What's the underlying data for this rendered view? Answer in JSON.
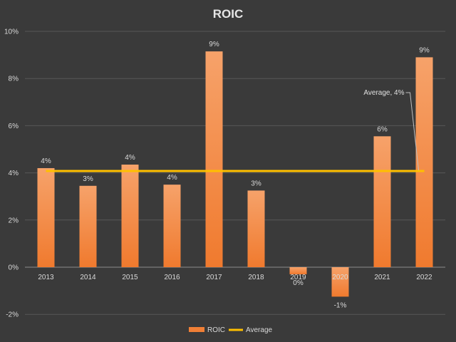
{
  "chart_data": {
    "type": "bar",
    "title": "ROIC",
    "categories": [
      "2013",
      "2014",
      "2015",
      "2016",
      "2017",
      "2018",
      "2019",
      "2020",
      "2021",
      "2022"
    ],
    "series": [
      {
        "name": "ROIC",
        "type": "bar",
        "color": "#f07f36",
        "values": [
          4.2,
          3.45,
          4.35,
          3.5,
          9.15,
          3.25,
          -0.3,
          -1.25,
          5.55,
          8.9
        ],
        "data_labels": [
          "4%",
          "3%",
          "4%",
          "4%",
          "9%",
          "3%",
          "0%",
          "-1%",
          "6%",
          "9%"
        ]
      },
      {
        "name": "Average",
        "type": "line",
        "color": "#ffc000",
        "values": [
          4.08,
          4.08,
          4.08,
          4.08,
          4.08,
          4.08,
          4.08,
          4.08,
          4.08,
          4.08
        ]
      }
    ],
    "ylim": [
      -2,
      10
    ],
    "yticks": [
      "-2%",
      "0%",
      "2%",
      "4%",
      "6%",
      "8%",
      "10%"
    ],
    "ytick_values": [
      -2,
      0,
      2,
      4,
      6,
      8,
      10
    ],
    "grid": true,
    "legend": "bottom",
    "annotation": {
      "text": "Average, 4%",
      "series": "Average",
      "category": "2022"
    }
  }
}
